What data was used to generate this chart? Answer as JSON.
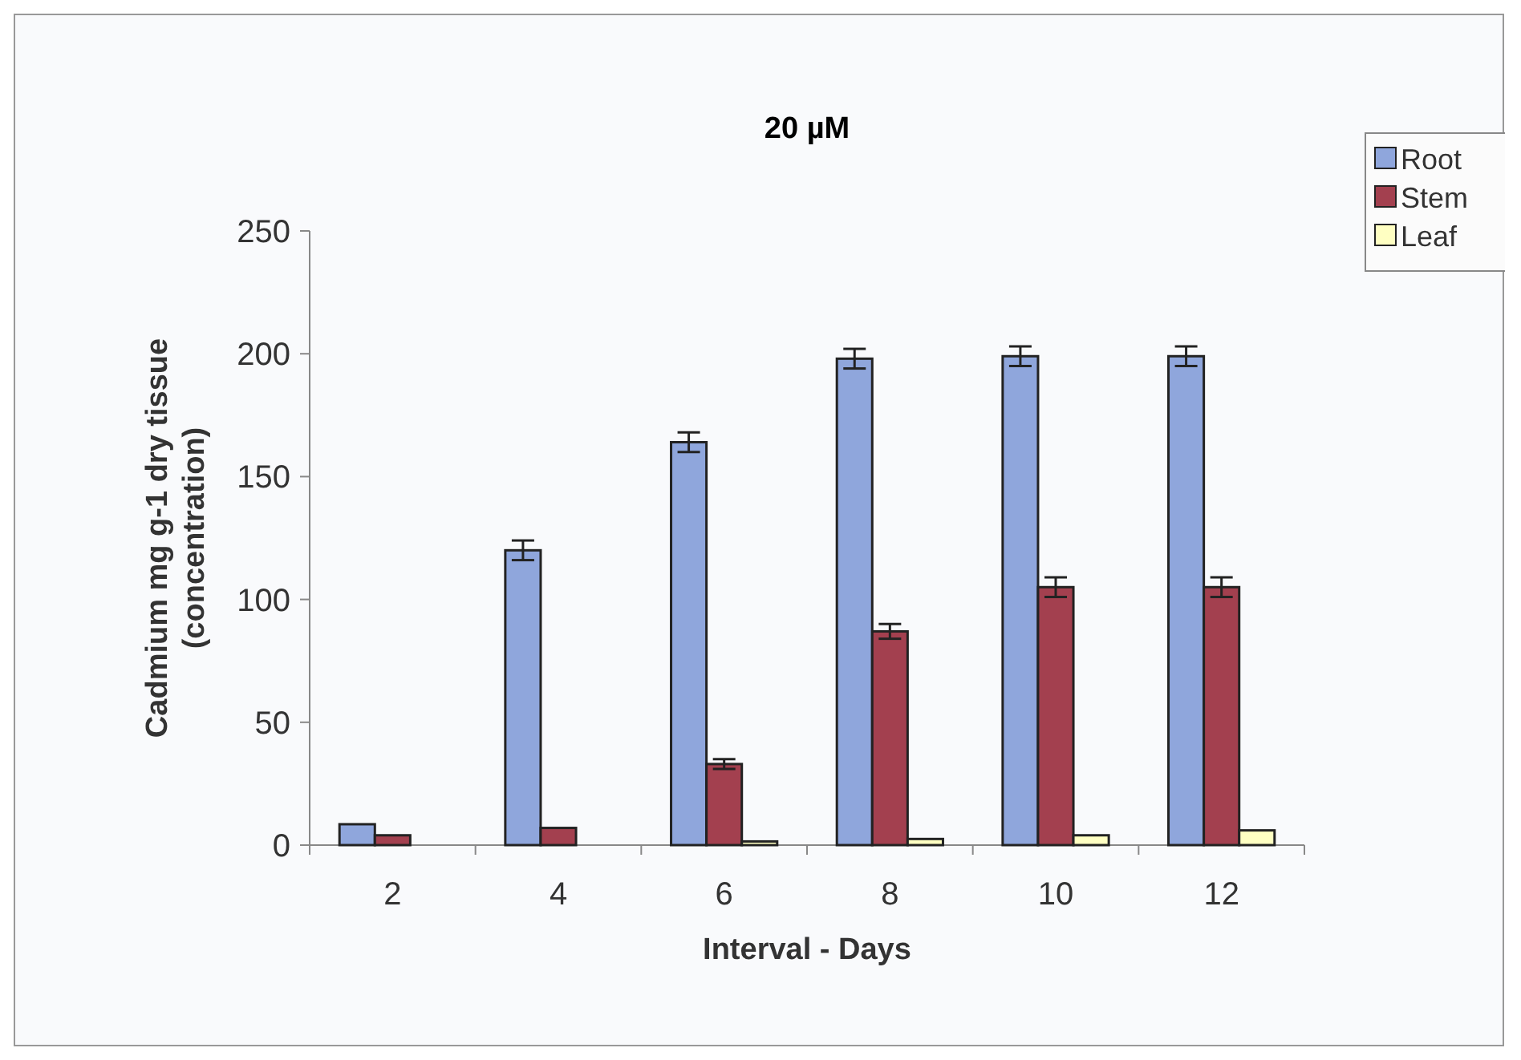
{
  "chart_data": {
    "type": "bar",
    "title": "20 µM",
    "xlabel": "Interval - Days",
    "ylabel": "Cadmium mg g-1 dry tissue\n(concentration)",
    "categories": [
      "2",
      "4",
      "6",
      "8",
      "10",
      "12"
    ],
    "ylim": [
      0,
      250
    ],
    "yticks": [
      0,
      50,
      100,
      150,
      200,
      250
    ],
    "grid": false,
    "legend": "top right",
    "series": [
      {
        "name": "Root",
        "color": "#8fa6dc",
        "values": [
          8.5,
          120,
          164,
          198,
          199,
          199
        ],
        "errors": [
          null,
          4,
          4,
          4,
          4,
          4
        ]
      },
      {
        "name": "Stem",
        "color": "#a3404f",
        "values": [
          4,
          7,
          33,
          87,
          105,
          105
        ],
        "errors": [
          null,
          null,
          2,
          3,
          4,
          4
        ]
      },
      {
        "name": "Leaf",
        "color": "#ffffc2",
        "values": [
          0,
          0,
          1.5,
          2.5,
          4,
          6
        ]
      }
    ]
  }
}
